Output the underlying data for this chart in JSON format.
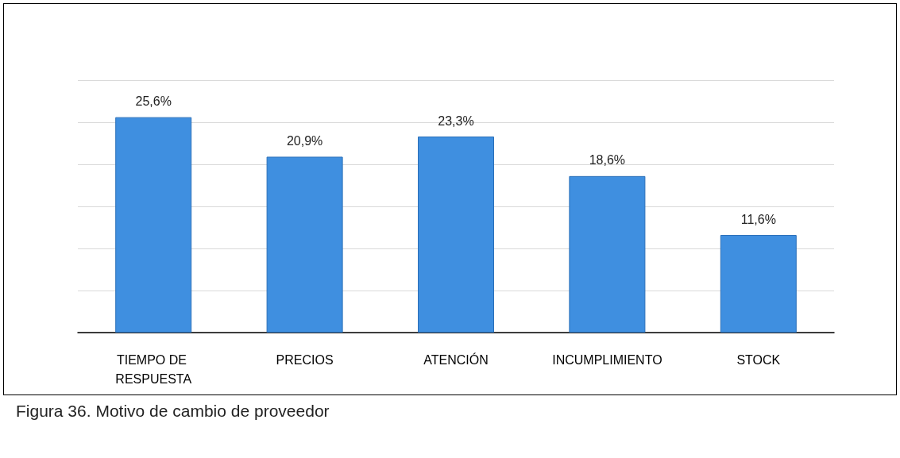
{
  "chart_data": {
    "type": "bar",
    "categories": [
      "TIEMPO DE RESPUESTA",
      "PRECIOS",
      "ATENCIÓN",
      "INCUMPLIMIENTO",
      "STOCK"
    ],
    "values": [
      25.6,
      20.9,
      23.3,
      18.6,
      11.6
    ],
    "value_labels": [
      "25,6%",
      "20,9%",
      "23,3%",
      "18,6%",
      "11,6%"
    ],
    "color": "#3f8fe0",
    "ylim": [
      0,
      30
    ],
    "yticks": [
      {
        "value": 0,
        "label": null
      },
      {
        "value": 5,
        "label": null
      },
      {
        "value": 10,
        "label": null
      },
      {
        "value": 15,
        "label": null
      },
      {
        "value": 20,
        "label": null
      },
      {
        "value": 25,
        "label": null
      },
      {
        "value": 30,
        "label": null
      }
    ],
    "tick_labels": "x",
    "grid": "y",
    "annotations": [
      "Figura 36.  Motivo de cambio de proveedor"
    ]
  }
}
